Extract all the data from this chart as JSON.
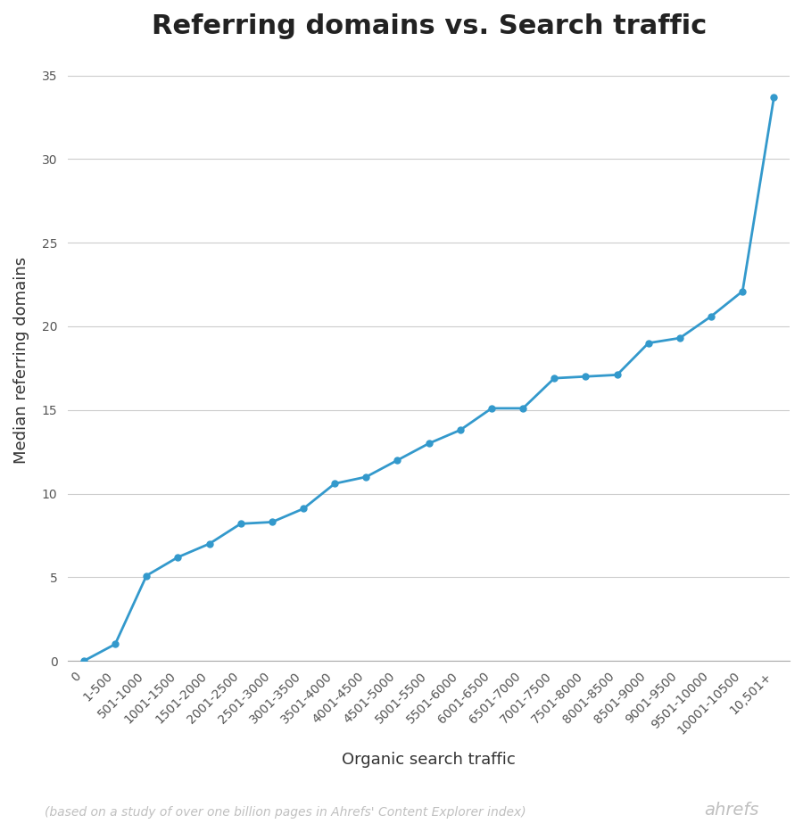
{
  "title": "Referring domains vs. Search traffic",
  "xlabel": "Organic search traffic",
  "ylabel": "Median referring domains",
  "footnote": "(based on a study of over one billion pages in Ahrefs' Content Explorer index)",
  "brand": "ahrefs",
  "x_labels": [
    "0",
    "1-500",
    "501-1000",
    "1001-1500",
    "1501-2000",
    "2001-2500",
    "2501-3000",
    "3001-3500",
    "3501-4000",
    "4001-4500",
    "4501-5000",
    "5001-5500",
    "5501-6000",
    "6001-6500",
    "6501-7000",
    "7001-7500",
    "7501-8000",
    "8001-8500",
    "8501-9000",
    "9001-9500",
    "9501-10000",
    "10001-10500",
    "10,501+"
  ],
  "y_values": [
    0.0,
    1.0,
    5.1,
    6.2,
    7.0,
    8.2,
    8.3,
    9.1,
    10.6,
    11.0,
    12.0,
    13.0,
    13.8,
    15.1,
    15.1,
    16.9,
    17.0,
    17.1,
    19.0,
    19.3,
    20.6,
    22.1,
    33.7
  ],
  "line_color": "#3399cc",
  "marker_color": "#3399cc",
  "background_color": "#ffffff",
  "grid_color": "#cccccc",
  "title_fontsize": 22,
  "label_fontsize": 13,
  "tick_fontsize": 10,
  "footnote_fontsize": 10,
  "brand_fontsize": 14,
  "ylim": [
    0,
    36
  ],
  "yticks": [
    0,
    5,
    10,
    15,
    20,
    25,
    30,
    35
  ]
}
